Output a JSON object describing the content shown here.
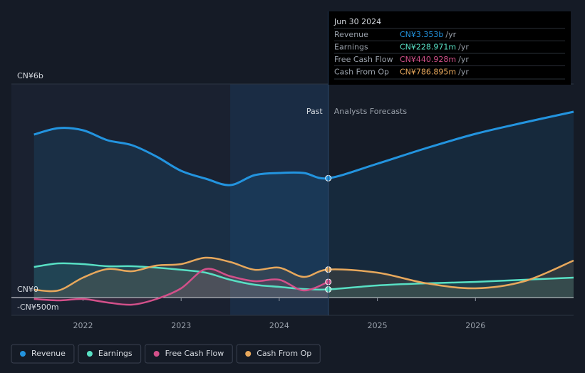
{
  "chart_data": {
    "type": "line",
    "x": [
      2021.5,
      2021.75,
      2022,
      2022.25,
      2022.5,
      2022.75,
      2023,
      2023.25,
      2023.5,
      2023.75,
      2024,
      2024.25,
      2024.5,
      2025,
      2025.5,
      2026,
      2026.5,
      2027
    ],
    "series": [
      {
        "name": "Revenue",
        "color": "#2394df",
        "values": [
          4580,
          4760,
          4700,
          4420,
          4280,
          3960,
          3560,
          3340,
          3160,
          3440,
          3500,
          3500,
          3353,
          3760,
          4200,
          4600,
          4920,
          5220
        ]
      },
      {
        "name": "Earnings",
        "color": "#58e0c4",
        "values": [
          860,
          960,
          940,
          880,
          880,
          840,
          780,
          700,
          500,
          360,
          300,
          240,
          229,
          340,
          400,
          440,
          500,
          560
        ]
      },
      {
        "name": "Free Cash Flow",
        "color": "#d3508a",
        "values": [
          -40,
          -80,
          -40,
          -140,
          -200,
          -40,
          260,
          800,
          600,
          460,
          500,
          200,
          441,
          null,
          null,
          null,
          null,
          null
        ]
      },
      {
        "name": "Cash From Op",
        "color": "#e8a85c",
        "values": [
          220,
          200,
          560,
          800,
          740,
          900,
          940,
          1120,
          1000,
          780,
          840,
          580,
          787,
          700,
          400,
          260,
          460,
          1040
        ]
      }
    ],
    "xlim": [
      2021.27,
      2027
    ],
    "xticks": [
      2022,
      2023,
      2024,
      2025,
      2026
    ],
    "ylim": [
      -500,
      6000
    ],
    "yticks": [
      {
        "value": 6000,
        "label": "CN¥6b"
      },
      {
        "value": 0,
        "label": "CN¥0"
      },
      {
        "value": -500,
        "label": "-CN¥500m"
      }
    ],
    "past_end": 2024.5,
    "past_label": "Past",
    "forecast_label": "Analysts Forecasts",
    "tooltip": {
      "title": "Jun 30 2024",
      "rows": [
        {
          "label": "Revenue",
          "value": "CN¥3.353b",
          "unit": "/yr"
        },
        {
          "label": "Earnings",
          "value": "CN¥228.971m",
          "unit": "/yr"
        },
        {
          "label": "Free Cash Flow",
          "value": "CN¥440.928m",
          "unit": "/yr"
        },
        {
          "label": "Cash From Op",
          "value": "CN¥786.895m",
          "unit": "/yr"
        }
      ]
    }
  }
}
